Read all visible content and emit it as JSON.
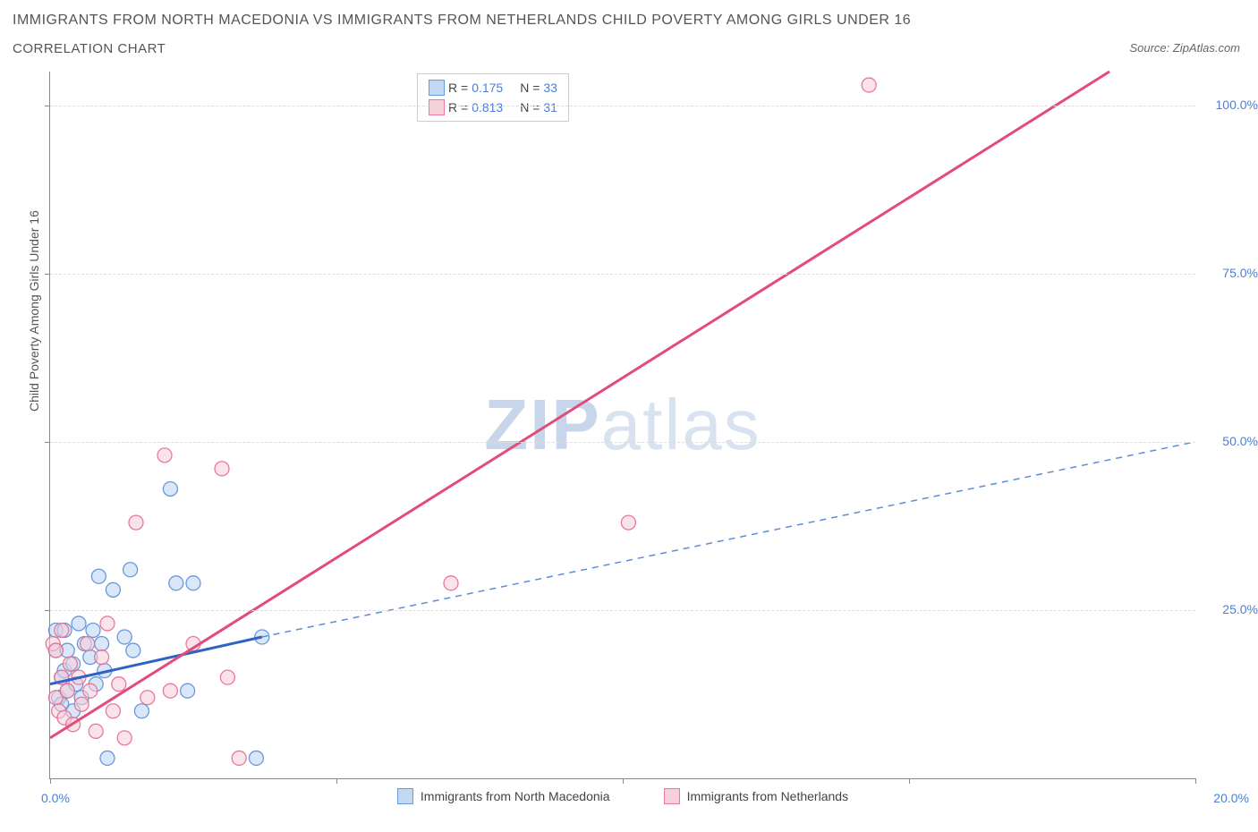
{
  "title": "IMMIGRANTS FROM NORTH MACEDONIA VS IMMIGRANTS FROM NETHERLANDS CHILD POVERTY AMONG GIRLS UNDER 16",
  "subtitle": "CORRELATION CHART",
  "source": "Source: ZipAtlas.com",
  "yaxis_label": "Child Poverty Among Girls Under 16",
  "watermark_a": "ZIP",
  "watermark_b": "atlas",
  "chart": {
    "type": "scatter",
    "xlim": [
      0,
      20
    ],
    "ylim": [
      0,
      105
    ],
    "x_ticks": [
      0,
      5,
      10,
      15,
      20
    ],
    "x_tick_labels": [
      "0.0%",
      "",
      "",
      "",
      "20.0%"
    ],
    "y_ticks": [
      25,
      50,
      75,
      100
    ],
    "y_tick_labels": [
      "25.0%",
      "50.0%",
      "75.0%",
      "100.0%"
    ],
    "grid_color": "#e8e8e8",
    "background_color": "#ffffff",
    "marker_radius": 8,
    "marker_opacity": 0.55,
    "series": [
      {
        "name": "Immigrants from North Macedonia",
        "color_fill": "#bcd4f2",
        "color_stroke": "#5a8ed6",
        "R": "0.175",
        "N": "33",
        "line": {
          "x1": 0,
          "y1": 14,
          "x2": 3.7,
          "y2": 21,
          "stroke": "#2f62c4",
          "width": 3,
          "dash": ""
        },
        "extrap": {
          "x1": 3.7,
          "y1": 21,
          "x2": 20,
          "y2": 50,
          "stroke": "#5a8ed6",
          "width": 1.5,
          "dash": "7,6"
        },
        "points": [
          [
            0.1,
            19
          ],
          [
            0.1,
            22
          ],
          [
            0.15,
            12
          ],
          [
            0.2,
            15
          ],
          [
            0.2,
            11
          ],
          [
            0.25,
            16
          ],
          [
            0.25,
            22
          ],
          [
            0.3,
            13
          ],
          [
            0.3,
            19
          ],
          [
            0.4,
            17
          ],
          [
            0.4,
            10
          ],
          [
            0.45,
            14
          ],
          [
            0.5,
            23
          ],
          [
            0.55,
            12
          ],
          [
            0.6,
            20
          ],
          [
            0.7,
            18
          ],
          [
            0.75,
            22
          ],
          [
            0.8,
            14
          ],
          [
            0.85,
            30
          ],
          [
            0.9,
            20
          ],
          [
            0.95,
            16
          ],
          [
            1.0,
            3
          ],
          [
            1.1,
            28
          ],
          [
            1.3,
            21
          ],
          [
            1.4,
            31
          ],
          [
            1.45,
            19
          ],
          [
            1.6,
            10
          ],
          [
            2.1,
            43
          ],
          [
            2.2,
            29
          ],
          [
            2.4,
            13
          ],
          [
            2.5,
            29
          ],
          [
            3.6,
            3
          ],
          [
            3.7,
            21
          ]
        ]
      },
      {
        "name": "Immigrants from Netherlands",
        "color_fill": "#f6cdd9",
        "color_stroke": "#e56c94",
        "R": "0.813",
        "N": "31",
        "line": {
          "x1": 0,
          "y1": 6,
          "x2": 18.5,
          "y2": 105,
          "stroke": "#e44b7b",
          "width": 3,
          "dash": ""
        },
        "points": [
          [
            0.05,
            20
          ],
          [
            0.1,
            12
          ],
          [
            0.1,
            19
          ],
          [
            0.15,
            10
          ],
          [
            0.2,
            15
          ],
          [
            0.2,
            22
          ],
          [
            0.25,
            9
          ],
          [
            0.3,
            13
          ],
          [
            0.35,
            17
          ],
          [
            0.4,
            8
          ],
          [
            0.5,
            15
          ],
          [
            0.55,
            11
          ],
          [
            0.65,
            20
          ],
          [
            0.7,
            13
          ],
          [
            0.8,
            7
          ],
          [
            0.9,
            18
          ],
          [
            1.0,
            23
          ],
          [
            1.1,
            10
          ],
          [
            1.2,
            14
          ],
          [
            1.3,
            6
          ],
          [
            1.5,
            38
          ],
          [
            1.7,
            12
          ],
          [
            2.0,
            48
          ],
          [
            2.1,
            13
          ],
          [
            2.5,
            20
          ],
          [
            3.0,
            46
          ],
          [
            3.1,
            15
          ],
          [
            3.3,
            3
          ],
          [
            7.0,
            29
          ],
          [
            10.1,
            38
          ],
          [
            14.3,
            103
          ]
        ]
      }
    ],
    "legend_top": {
      "r_label": "R =",
      "n_label": "N ="
    },
    "legend_bottom": [
      {
        "label": "Immigrants from North Macedonia",
        "fill": "#bcd4f2",
        "stroke": "#5a8ed6"
      },
      {
        "label": "Immigrants from Netherlands",
        "fill": "#f6cdd9",
        "stroke": "#e56c94"
      }
    ]
  }
}
